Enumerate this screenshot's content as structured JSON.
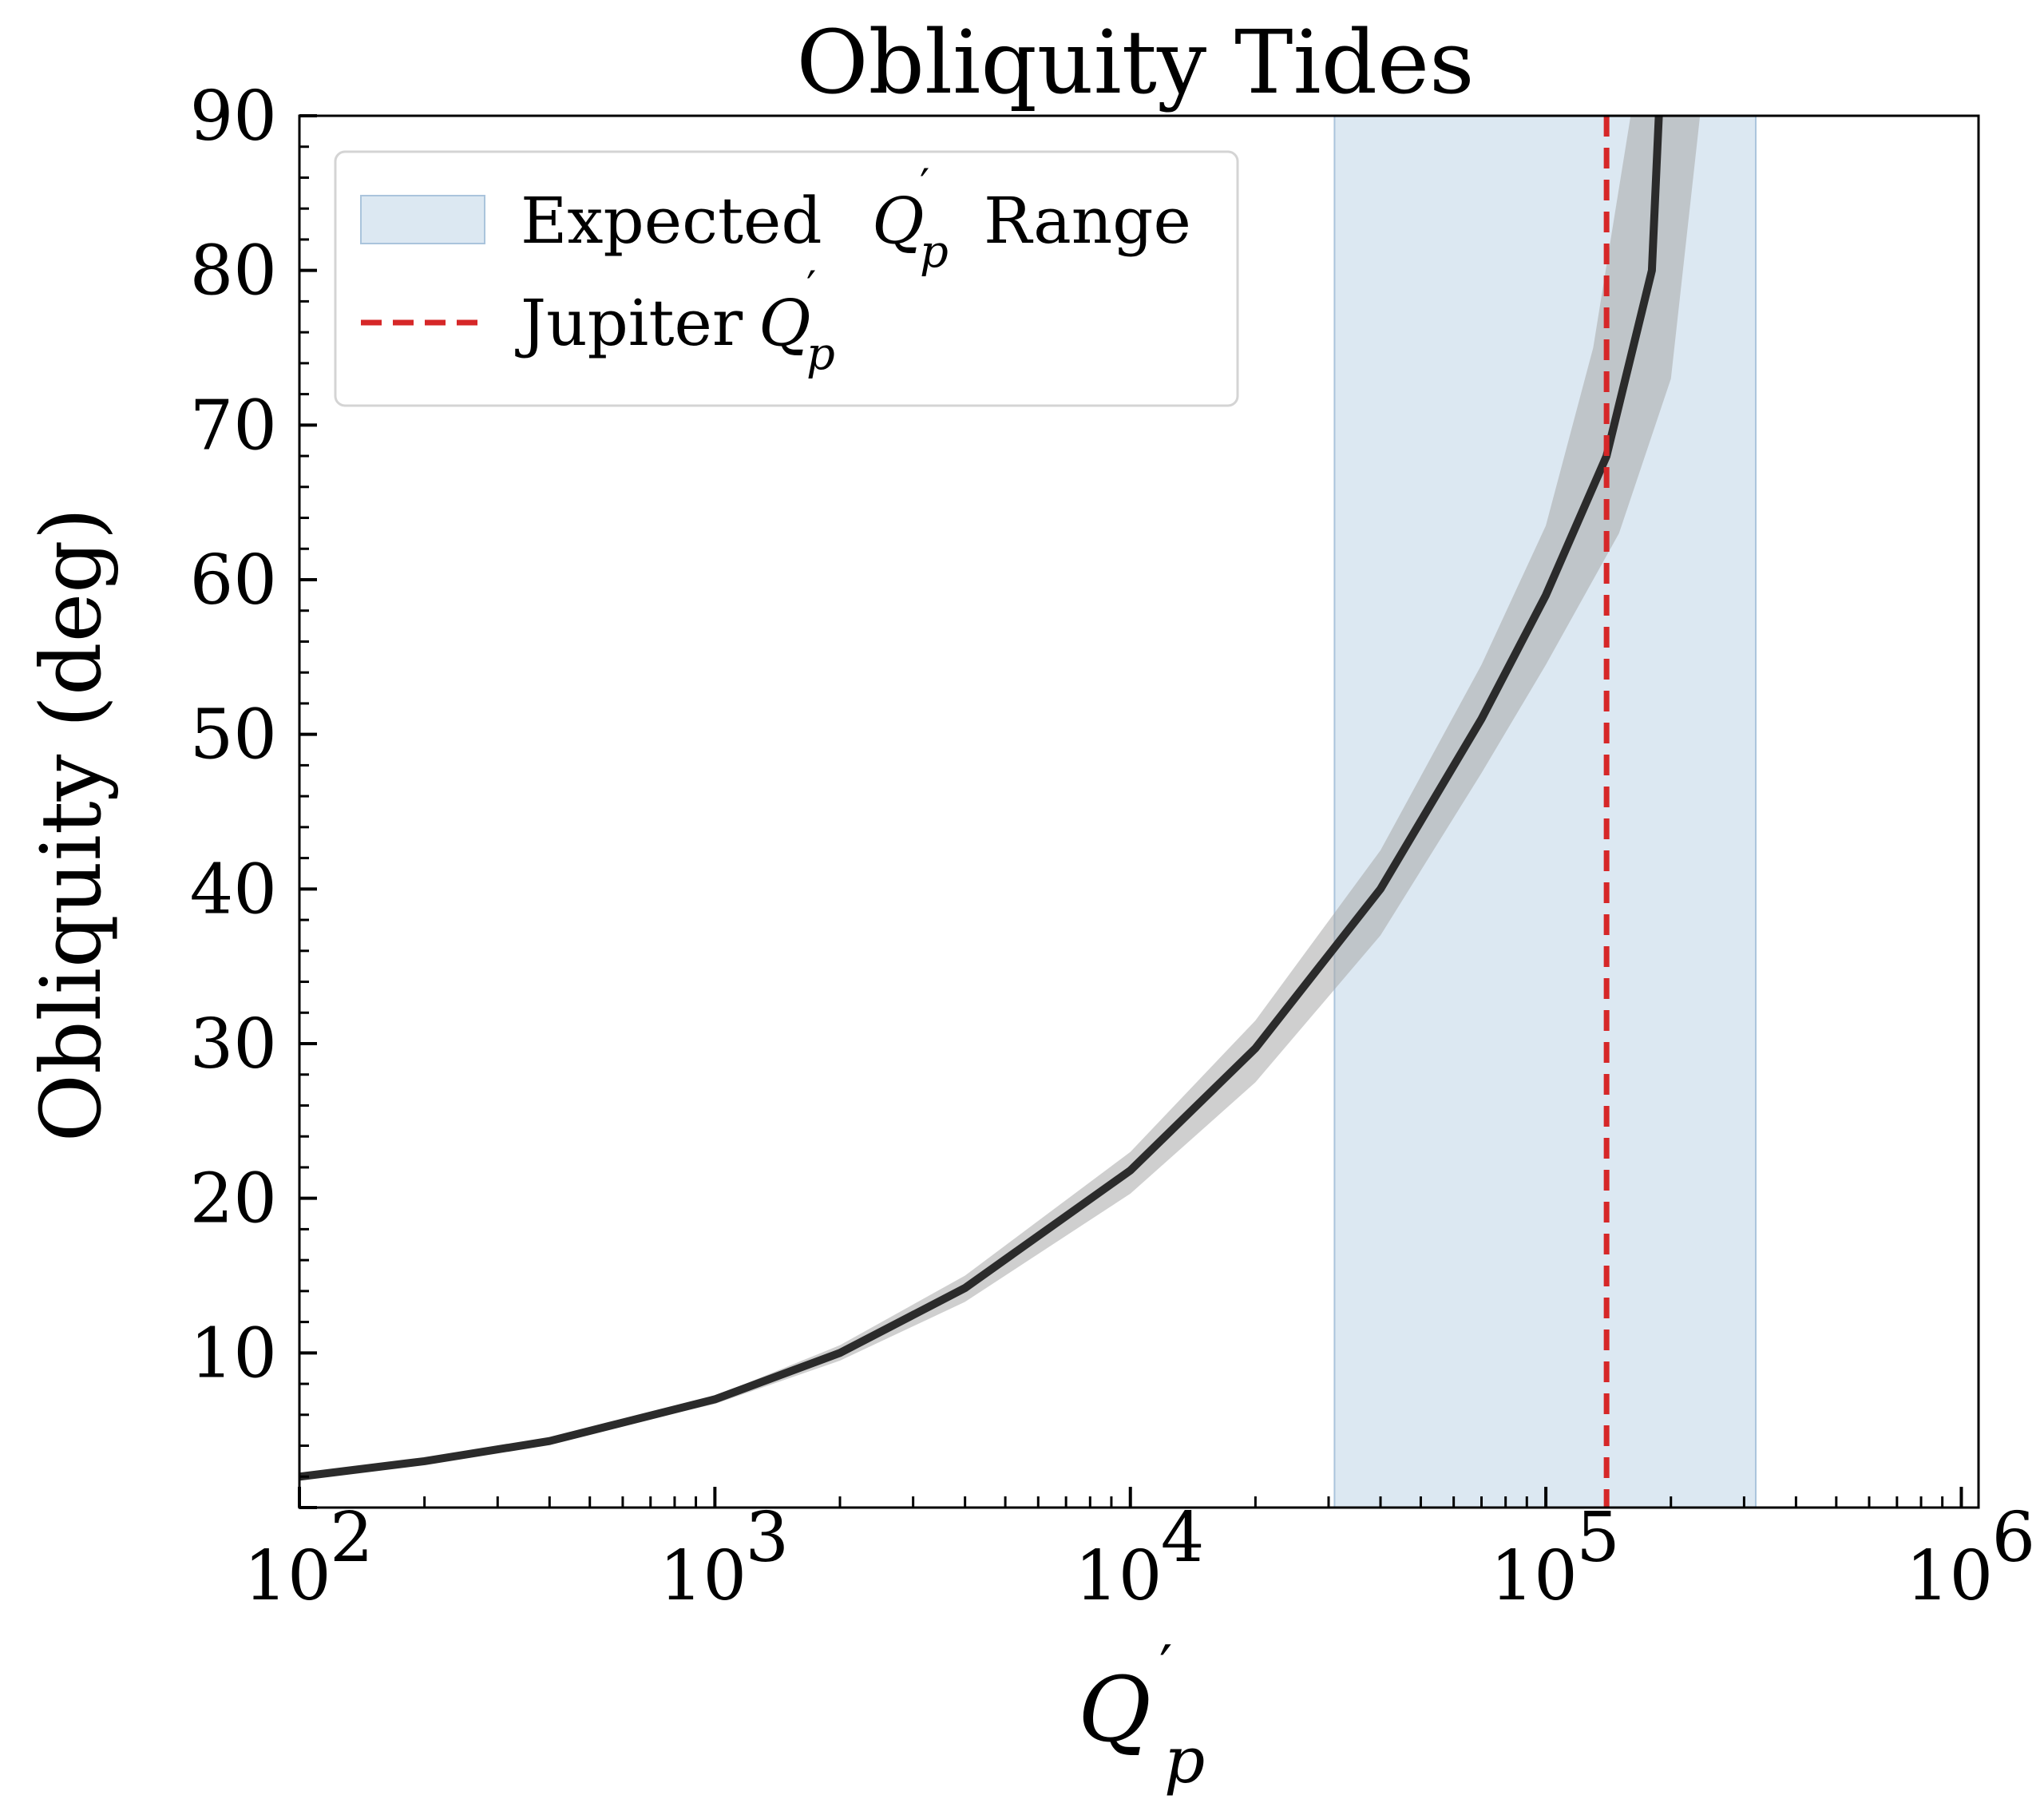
{
  "chart_data": {
    "type": "line",
    "title": "Obliquity Tides",
    "xlabel_main": "Q",
    "xlabel_sub": "p",
    "xlabel_prime": "′",
    "ylabel": "Obliquity (deg)",
    "xscale": "log",
    "xlim": [
      100,
      1100000
    ],
    "ylim": [
      0,
      90
    ],
    "x_ticks": [
      {
        "value": 100,
        "base": "10",
        "exp": "2"
      },
      {
        "value": 1000,
        "base": "10",
        "exp": "3"
      },
      {
        "value": 10000,
        "base": "10",
        "exp": "4"
      },
      {
        "value": 100000,
        "base": "10",
        "exp": "5"
      },
      {
        "value": 1000000,
        "base": "10",
        "exp": "6"
      }
    ],
    "y_ticks": [
      10,
      20,
      30,
      40,
      50,
      60,
      70,
      80,
      90
    ],
    "grid": false,
    "series": [
      {
        "name": "obliquity",
        "color": "#2b2b2b",
        "x": [
          100,
          200,
          400,
          1000,
          2000,
          4000,
          10000,
          20000,
          40000,
          70000,
          100000,
          140000,
          180000,
          187000
        ],
        "y": [
          2.0,
          3.0,
          4.3,
          7.0,
          10.0,
          14.2,
          21.8,
          29.7,
          40.0,
          51.0,
          59.0,
          68.0,
          80.0,
          90.0
        ]
      }
    ],
    "uncertainty_band": {
      "color": "#a8a8a8",
      "upper_x": [
        100,
        200,
        400,
        1000,
        2000,
        4000,
        10000,
        20000,
        40000,
        70000,
        100000,
        130000,
        160000
      ],
      "upper_y": [
        2.1,
        3.1,
        4.4,
        7.2,
        10.5,
        15.0,
        23.0,
        31.5,
        42.5,
        54.5,
        63.5,
        75.0,
        90.0
      ],
      "lower_x": [
        100,
        200,
        400,
        1000,
        2000,
        4000,
        10000,
        20000,
        40000,
        70000,
        100000,
        150000,
        200000,
        235000
      ],
      "lower_y": [
        1.9,
        2.9,
        4.2,
        6.7,
        9.5,
        13.3,
        20.3,
        27.5,
        37.0,
        47.5,
        54.5,
        63.0,
        73.0,
        90.0
      ]
    },
    "shaded_region": {
      "label_text": "Expected ",
      "x_range": [
        31000,
        320000
      ],
      "color": "#c5d9ea"
    },
    "vline": {
      "label_text": "Jupiter ",
      "x": 140000,
      "color": "#d62728",
      "style": "dashed"
    },
    "legend_position": "upper-left"
  }
}
